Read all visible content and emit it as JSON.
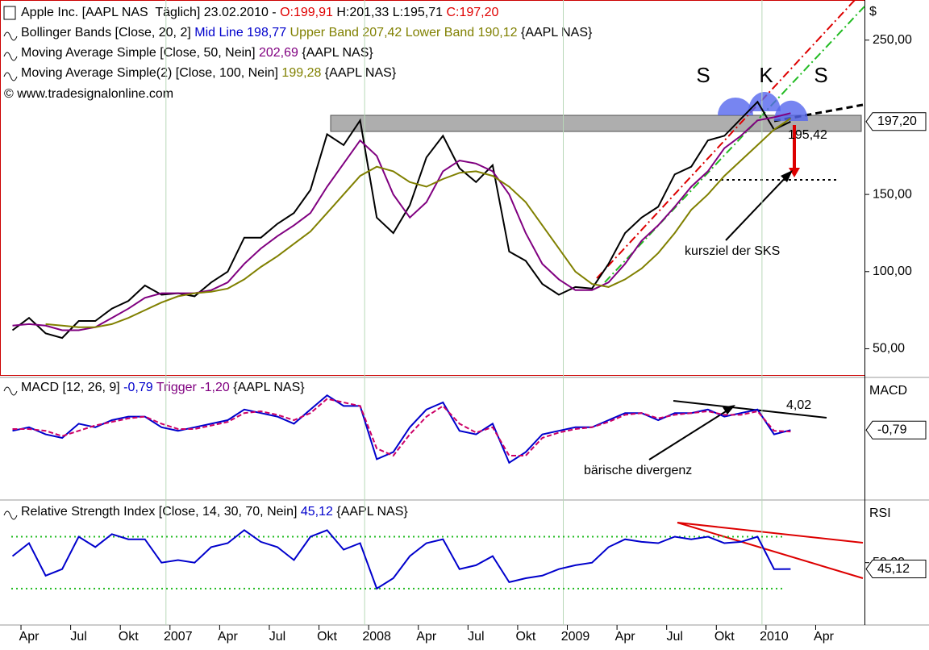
{
  "chart_data": [
    {
      "type": "line",
      "title_parts": [
        {
          "text": "Apple Inc. [AAPL NAS  Täglich] 23.02.2010 - ",
          "color": "#000000"
        },
        {
          "text": "O:199,91",
          "color": "#e00000"
        },
        {
          "text": " H:201,33 L:195,71 ",
          "color": "#000000"
        },
        {
          "text": "C:197,20",
          "color": "#e00000"
        }
      ],
      "legend": [
        [
          {
            "text": "Bollinger Bands [Close, 20, 2] ",
            "color": "#000000"
          },
          {
            "text": "Mid Line 198,77",
            "color": "#0000cc"
          },
          {
            "text": " Upper Band 207,42 Lower Band 190,12",
            "color": "#808000"
          },
          {
            "text": " {AAPL NAS}",
            "color": "#000000"
          }
        ],
        [
          {
            "text": "Moving Average Simple [Close, 50, Nein] ",
            "color": "#000000"
          },
          {
            "text": "202,69",
            "color": "#800080"
          },
          {
            "text": " {AAPL NAS}",
            "color": "#000000"
          }
        ],
        [
          {
            "text": "Moving Average Simple(2) [Close, 100, Nein] ",
            "color": "#000000"
          },
          {
            "text": "199,28",
            "color": "#808000"
          },
          {
            "text": " {AAPL NAS}",
            "color": "#000000"
          }
        ]
      ],
      "copyright": "© www.tradesignalonline.com",
      "axis_label": "$",
      "last_value": "197,20",
      "ylim": [
        33,
        276
      ],
      "yticks": [
        {
          "value": 50,
          "label": "50,00"
        },
        {
          "value": 100,
          "label": "100,00"
        },
        {
          "value": 150,
          "label": "150,00"
        },
        {
          "value": 250,
          "label": "250,00"
        }
      ],
      "series": [
        {
          "color": "#000000",
          "values": [
            62,
            70,
            60,
            57,
            68,
            68,
            76,
            81,
            91,
            85,
            86,
            84,
            93,
            100,
            122,
            122,
            131,
            138,
            153,
            189,
            182,
            198,
            135,
            125,
            143,
            174,
            188,
            167,
            158,
            169,
            113,
            107,
            92,
            85,
            90,
            89,
            105,
            125,
            135,
            142,
            163,
            168,
            185,
            188,
            199,
            210,
            192,
            197.2,
            null,
            null,
            null
          ]
        },
        {
          "color": "#800080",
          "values": [
            65,
            66,
            65,
            62,
            62,
            64,
            70,
            76,
            83,
            86,
            86,
            86,
            88,
            93,
            105,
            115,
            123,
            130,
            138,
            155,
            170,
            185,
            175,
            150,
            135,
            145,
            165,
            172,
            170,
            165,
            150,
            125,
            105,
            95,
            88,
            88,
            93,
            105,
            120,
            130,
            142,
            155,
            165,
            180,
            188,
            198,
            200,
            202.7,
            null,
            null,
            null
          ]
        },
        {
          "color": "#808000",
          "values": [
            null,
            null,
            66,
            65,
            64,
            64,
            66,
            70,
            75,
            80,
            84,
            86,
            87,
            89,
            95,
            103,
            110,
            118,
            126,
            138,
            150,
            162,
            168,
            165,
            158,
            155,
            160,
            164,
            165,
            162,
            155,
            145,
            130,
            115,
            100,
            92,
            90,
            95,
            102,
            112,
            125,
            140,
            150,
            162,
            172,
            182,
            192,
            199.3,
            null,
            null,
            null
          ]
        }
      ],
      "annotations": [
        "S",
        "K",
        "S",
        "195,42",
        "kursziel der SKS"
      ]
    },
    {
      "type": "line",
      "legend": [
        [
          {
            "text": "MACD [12, 26, 9] ",
            "color": "#000000"
          },
          {
            "text": "-0,79",
            "color": "#0000cc"
          },
          {
            "text": " Trigger ",
            "color": "#800080"
          },
          {
            "text": "-1,20",
            "color": "#800080"
          },
          {
            "text": " {AAPL NAS}",
            "color": "#000000"
          }
        ]
      ],
      "axis_label": "MACD",
      "last_value": "-0,79",
      "ylim": [
        -20.5,
        13.6
      ],
      "series": [
        {
          "color": "#0000cc",
          "values": [
            -1,
            0,
            -2,
            -3,
            1,
            0,
            2,
            3,
            3,
            0,
            -1,
            0,
            1,
            2,
            5,
            4,
            3,
            1,
            5,
            9,
            6,
            6,
            -9,
            -7,
            0,
            5,
            7,
            -1,
            -2,
            1,
            -10,
            -7,
            -2,
            -1,
            0,
            0,
            2,
            4,
            4,
            2,
            4,
            4,
            5,
            3,
            4,
            5,
            -2,
            -0.79,
            null,
            null,
            null
          ]
        },
        {
          "color": "#cc0066",
          "values": [
            -0.5,
            -0.5,
            -1,
            -2.5,
            -1,
            0.5,
            1.5,
            2.5,
            3,
            1,
            -0.5,
            -0.5,
            0.5,
            1.5,
            4,
            4.5,
            3.5,
            2,
            4,
            8,
            7,
            6,
            -6,
            -8,
            -2,
            3,
            6,
            1,
            -1.5,
            0,
            -8,
            -8,
            -3,
            -1.5,
            -0.5,
            0,
            1.5,
            3.5,
            4,
            2.5,
            3.5,
            4,
            4.5,
            3.5,
            3.5,
            4.5,
            -1,
            -1.2,
            null,
            null,
            null
          ]
        }
      ],
      "annotations": [
        "4,02",
        "bärische divergenz"
      ]
    },
    {
      "type": "line",
      "legend": [
        [
          {
            "text": "Relative Strength Index [Close, 14, 30, 70, Nein] ",
            "color": "#000000"
          },
          {
            "text": "45,12",
            "color": "#0000cc"
          },
          {
            "text": " {AAPL NAS}",
            "color": "#000000"
          }
        ]
      ],
      "axis_label": "RSI",
      "last_value": "45,12",
      "ylim": [
        2,
        97
      ],
      "yticks": [
        {
          "value": 50,
          "label": "50,00"
        }
      ],
      "levels": [
        30,
        70
      ],
      "level_color": "#22bb22",
      "categories": [
        null,
        "Apr",
        null,
        null,
        "Jul",
        null,
        null,
        "Okt",
        null,
        null,
        "2007",
        null,
        null,
        "Apr",
        null,
        null,
        "Jul",
        null,
        null,
        "Okt",
        null,
        null,
        "2008",
        null,
        null,
        "Apr",
        null,
        null,
        "Jul",
        null,
        null,
        "Okt",
        null,
        null,
        "2009",
        null,
        null,
        "Apr",
        null,
        null,
        "Jul",
        null,
        null,
        "Okt",
        null,
        null,
        "2010",
        null,
        null,
        "Apr",
        null
      ],
      "series": [
        {
          "color": "#0000cc",
          "values": [
            55,
            65,
            40,
            45,
            70,
            62,
            72,
            68,
            68,
            50,
            52,
            50,
            62,
            65,
            75,
            66,
            62,
            52,
            70,
            75,
            60,
            65,
            30,
            38,
            55,
            65,
            68,
            45,
            48,
            55,
            35,
            38,
            40,
            45,
            48,
            50,
            62,
            68,
            66,
            65,
            70,
            68,
            70,
            65,
            66,
            70,
            45,
            45.12,
            null,
            null,
            null
          ]
        }
      ]
    }
  ]
}
